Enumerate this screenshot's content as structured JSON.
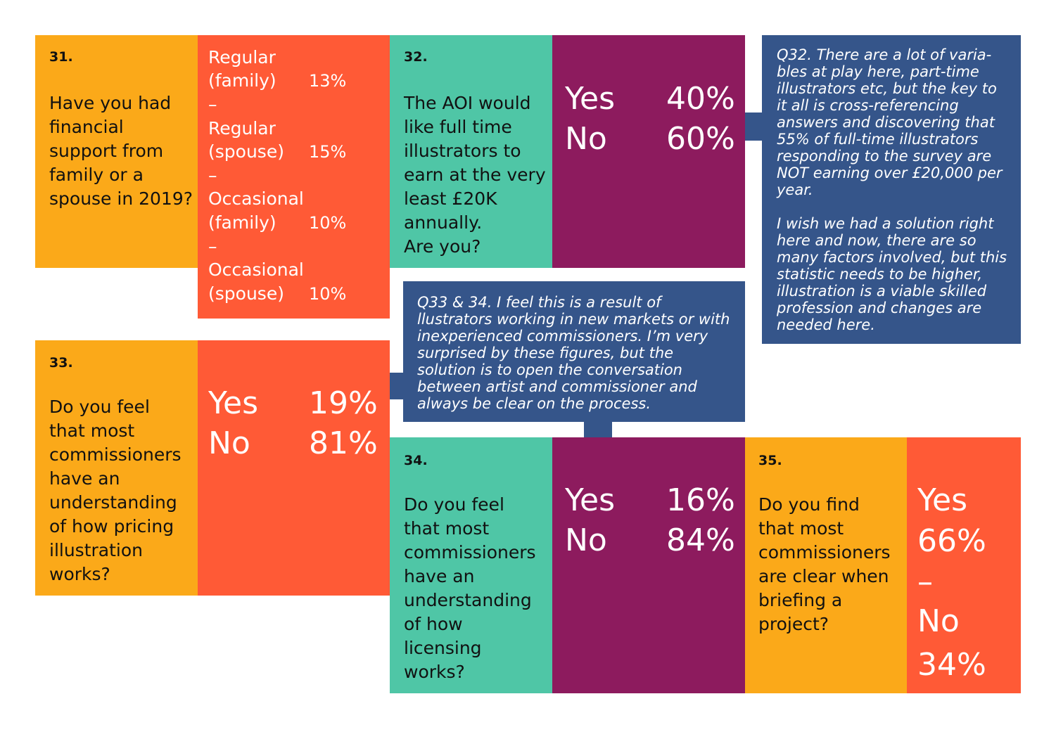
{
  "q31": {
    "number": "31.",
    "lines": [
      "Have you had",
      "financial",
      "support from",
      "family or a",
      "spouse in 2019?"
    ],
    "answers": [
      {
        "label1": "Regular",
        "label2": "(family)",
        "pct": "13%"
      },
      {
        "label1": "Regular",
        "label2": "(spouse)",
        "pct": "15%"
      },
      {
        "label1": "Occasional",
        "label2": "(family)",
        "pct": "10%"
      },
      {
        "label1": "Occasional",
        "label2": "(spouse)",
        "pct": "10%"
      }
    ],
    "dash": "–"
  },
  "q32": {
    "number": "32.",
    "lines": [
      "The AOI would",
      "like full time",
      "illustrators to",
      "earn at the very",
      "least £20K",
      "annually.",
      "Are you?"
    ],
    "yes_label": "Yes",
    "yes_pct": "40%",
    "no_label": "No",
    "no_pct": "60%"
  },
  "note32": {
    "lines": [
      "Q32. There are a lot of varia-",
      "bles at play here, part-time",
      "illustrators  etc, but the key to",
      "it all is cross-referencing",
      "answers and discovering that",
      "55% of full-time  illustrators",
      "responding to the survey are",
      "NOT earning over £20,000 per",
      "year.",
      "",
      "I wish we had a solution right",
      "here and now, there are so",
      "many factors involved, but this",
      "statistic needs to be higher,",
      "illustration is a viable skilled",
      "profession and  changes are",
      "needed here."
    ]
  },
  "note33": {
    "lines": [
      "Q33 & 34. I feel this is a result of",
      "llustrators working in new markets or with",
      "inexperienced commissioners. I’m very",
      "surprised by these figures, but the",
      "solution is to open the conversation",
      "between artist and commissioner and",
      "always be clear on the process."
    ]
  },
  "q33": {
    "number": "33.",
    "lines": [
      "Do you feel",
      "that most",
      "commissioners",
      "have an",
      "understanding",
      "of how pricing",
      "illustration",
      "works?"
    ],
    "yes_label": "Yes",
    "yes_pct": "19%",
    "no_label": "No",
    "no_pct": "81%"
  },
  "q34": {
    "number": "34.",
    "lines": [
      "Do you feel",
      "that most",
      "commissioners",
      "have an",
      "understanding",
      "of how",
      "licensing",
      "works?"
    ],
    "yes_label": "Yes",
    "yes_pct": "16%",
    "no_label": "No",
    "no_pct": "84%"
  },
  "q35": {
    "number": "35.",
    "lines": [
      "Do you find",
      "that most",
      "commissioners",
      "are clear when",
      "briefing a",
      "project?"
    ],
    "yes_label": "Yes",
    "yes_pct": "66%",
    "dash": "–",
    "no_label": "No",
    "no_pct": "34%"
  },
  "colors": {
    "orange": "#FBA919",
    "red": "#FF5A36",
    "teal": "#4FC6A6",
    "plum": "#8D1B5E",
    "navy": "#35558A"
  }
}
